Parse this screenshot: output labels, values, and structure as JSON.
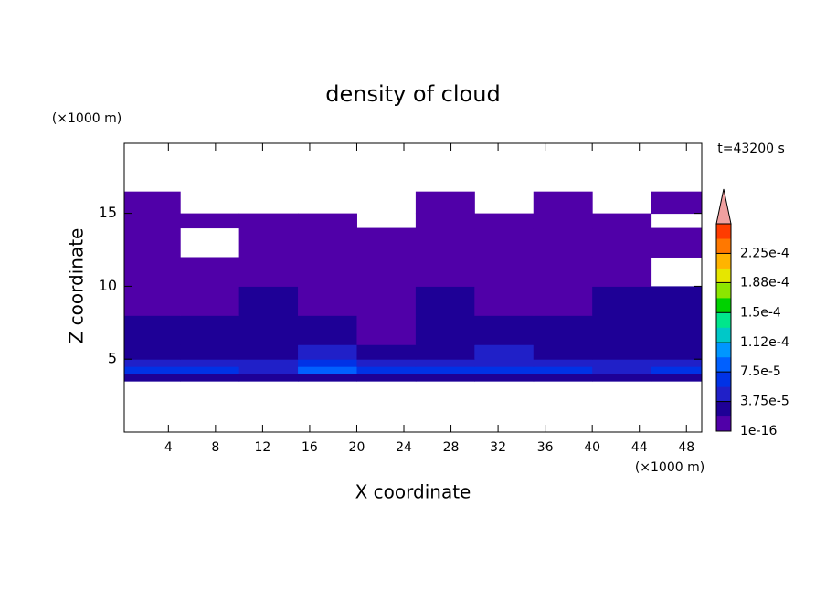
{
  "chart_data": {
    "type": "contour",
    "title": "density of cloud",
    "xlabel": "X coordinate",
    "ylabel": "Z coordinate",
    "x_unit": "(×1000 m)",
    "y_unit": "(×1000 m)",
    "annotation": "t=43200 s",
    "xlim": [
      0.25,
      49.3
    ],
    "ylim": [
      0,
      19.8
    ],
    "xticks": [
      4,
      8,
      12,
      16,
      20,
      24,
      28,
      32,
      36,
      40,
      44,
      48
    ],
    "yticks": [
      5,
      10,
      15
    ],
    "field": {
      "x_edges": [
        0.25,
        5,
        10,
        15,
        20,
        25,
        30,
        35,
        40,
        45,
        49.3
      ],
      "z_edges": [
        3.5,
        4,
        4.5,
        5,
        6,
        8,
        10,
        12,
        14,
        15,
        16.5
      ],
      "values": [
        [
          3e-05,
          3e-05,
          2.5e-05,
          3e-05,
          3e-05,
          3e-05,
          3e-05,
          2.5e-05,
          3e-05,
          3e-05
        ],
        [
          7e-05,
          6e-05,
          5e-05,
          8e-05,
          7e-05,
          6e-05,
          7e-05,
          6e-05,
          5e-05,
          6e-05
        ],
        [
          5e-05,
          4e-05,
          4e-05,
          6e-05,
          5e-05,
          5e-05,
          5e-05,
          4e-05,
          4e-05,
          4e-05
        ],
        [
          3e-05,
          2e-05,
          3e-05,
          4e-05,
          3e-05,
          3e-05,
          4e-05,
          3e-05,
          2e-05,
          3e-05
        ],
        [
          2e-05,
          2.5e-05,
          2e-05,
          2e-05,
          1.5e-05,
          2e-05,
          2.5e-05,
          3e-05,
          2.5e-05,
          3e-05
        ],
        [
          1.5e-05,
          1.5e-05,
          2e-05,
          1e-05,
          1.5e-05,
          2e-05,
          1.5e-05,
          1e-05,
          2e-05,
          2e-05
        ],
        [
          1e-05,
          1e-05,
          5e-06,
          5e-06,
          1e-05,
          5e-06,
          1e-05,
          5e-06,
          5e-06,
          null
        ],
        [
          5e-06,
          null,
          5e-06,
          5e-06,
          5e-06,
          5e-06,
          5e-06,
          5e-06,
          5e-06,
          5e-06
        ],
        [
          3e-06,
          3e-06,
          3e-06,
          3e-06,
          null,
          3e-06,
          3e-06,
          3e-06,
          3e-06,
          null
        ],
        [
          1e-06,
          null,
          null,
          null,
          null,
          1e-06,
          null,
          1e-06,
          null,
          1e-06
        ]
      ]
    },
    "clim": [
      1e-16,
      0.0002625
    ],
    "colors": [
      "#5000a8",
      "#1e0096",
      "#2020c8",
      "#0032e6",
      "#0060ff",
      "#0096ff",
      "#00c8c8",
      "#00e68c",
      "#00d200",
      "#8ce600",
      "#e6e600",
      "#ffb400",
      "#ff7800",
      "#ff3c00"
    ],
    "extend_color": "#f0a0a0",
    "cticks": [
      {
        "value": 1e-16,
        "label": "1e-16"
      },
      {
        "value": 3.75e-05,
        "label": "3.75e-5"
      },
      {
        "value": 7.5e-05,
        "label": "7.5e-5"
      },
      {
        "value": 0.000112,
        "label": "1.12e-4"
      },
      {
        "value": 0.00015,
        "label": "1.5e-4"
      },
      {
        "value": 0.000188,
        "label": "1.88e-4"
      },
      {
        "value": 0.000225,
        "label": "2.25e-4"
      }
    ]
  }
}
